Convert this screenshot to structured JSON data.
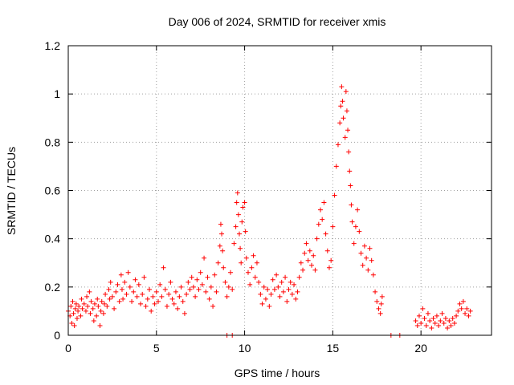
{
  "chart_data": {
    "type": "scatter",
    "title": "Day 006 of 2024, SRMTID for receiver xmis",
    "xlabel": "GPS time / hours",
    "ylabel": "SRMTID / TECUs",
    "xlim": [
      0,
      24
    ],
    "ylim": [
      0,
      1.2
    ],
    "x_ticks": [
      0,
      5,
      10,
      15,
      20
    ],
    "x_tick_labels": [
      "0",
      "5",
      "10",
      "15",
      "20"
    ],
    "y_ticks": [
      0,
      0.2,
      0.4,
      0.6,
      0.8,
      1.0,
      1.2
    ],
    "y_tick_labels": [
      "0",
      "0.2",
      "0.4",
      "0.6",
      "0.8",
      "1",
      "1.2"
    ],
    "grid": true,
    "marker": "plus",
    "marker_color": "#ff0000",
    "series": [
      {
        "name": "SRMTID",
        "points": [
          [
            0.0,
            0.1
          ],
          [
            0.1,
            0.08
          ],
          [
            0.15,
            0.12
          ],
          [
            0.2,
            0.05
          ],
          [
            0.25,
            0.14
          ],
          [
            0.3,
            0.09
          ],
          [
            0.35,
            0.04
          ],
          [
            0.4,
            0.11
          ],
          [
            0.45,
            0.13
          ],
          [
            0.5,
            0.07
          ],
          [
            0.55,
            0.1
          ],
          [
            0.6,
            0.12
          ],
          [
            0.7,
            0.08
          ],
          [
            0.75,
            0.15
          ],
          [
            0.8,
            0.11
          ],
          [
            0.9,
            0.13
          ],
          [
            1.0,
            0.1
          ],
          [
            1.05,
            0.16
          ],
          [
            1.1,
            0.12
          ],
          [
            1.2,
            0.18
          ],
          [
            1.25,
            0.09
          ],
          [
            1.3,
            0.14
          ],
          [
            1.4,
            0.11
          ],
          [
            1.45,
            0.06
          ],
          [
            1.5,
            0.13
          ],
          [
            1.6,
            0.08
          ],
          [
            1.65,
            0.15
          ],
          [
            1.7,
            0.12
          ],
          [
            1.8,
            0.04
          ],
          [
            1.85,
            0.1
          ],
          [
            1.9,
            0.14
          ],
          [
            2.0,
            0.09
          ],
          [
            2.05,
            0.13
          ],
          [
            2.1,
            0.17
          ],
          [
            2.2,
            0.12
          ],
          [
            2.3,
            0.19
          ],
          [
            2.35,
            0.15
          ],
          [
            2.4,
            0.22
          ],
          [
            2.5,
            0.16
          ],
          [
            2.6,
            0.11
          ],
          [
            2.7,
            0.18
          ],
          [
            2.8,
            0.21
          ],
          [
            2.9,
            0.14
          ],
          [
            3.0,
            0.25
          ],
          [
            3.05,
            0.19
          ],
          [
            3.1,
            0.15
          ],
          [
            3.2,
            0.22
          ],
          [
            3.3,
            0.17
          ],
          [
            3.4,
            0.26
          ],
          [
            3.5,
            0.2
          ],
          [
            3.6,
            0.14
          ],
          [
            3.7,
            0.18
          ],
          [
            3.8,
            0.23
          ],
          [
            3.9,
            0.16
          ],
          [
            4.0,
            0.21
          ],
          [
            4.1,
            0.13
          ],
          [
            4.2,
            0.17
          ],
          [
            4.3,
            0.24
          ],
          [
            4.4,
            0.12
          ],
          [
            4.5,
            0.15
          ],
          [
            4.6,
            0.19
          ],
          [
            4.7,
            0.1
          ],
          [
            4.8,
            0.16
          ],
          [
            4.9,
            0.13
          ],
          [
            5.0,
            0.18
          ],
          [
            5.1,
            0.14
          ],
          [
            5.2,
            0.21
          ],
          [
            5.3,
            0.16
          ],
          [
            5.4,
            0.28
          ],
          [
            5.5,
            0.19
          ],
          [
            5.6,
            0.12
          ],
          [
            5.7,
            0.17
          ],
          [
            5.8,
            0.22
          ],
          [
            5.9,
            0.15
          ],
          [
            6.0,
            0.13
          ],
          [
            6.1,
            0.18
          ],
          [
            6.2,
            0.11
          ],
          [
            6.3,
            0.16
          ],
          [
            6.4,
            0.2
          ],
          [
            6.5,
            0.14
          ],
          [
            6.6,
            0.09
          ],
          [
            6.7,
            0.17
          ],
          [
            6.8,
            0.22
          ],
          [
            6.9,
            0.19
          ],
          [
            7.0,
            0.24
          ],
          [
            7.1,
            0.2
          ],
          [
            7.2,
            0.16
          ],
          [
            7.3,
            0.23
          ],
          [
            7.4,
            0.19
          ],
          [
            7.5,
            0.26
          ],
          [
            7.6,
            0.21
          ],
          [
            7.7,
            0.32
          ],
          [
            7.8,
            0.18
          ],
          [
            7.9,
            0.24
          ],
          [
            8.0,
            0.15
          ],
          [
            8.1,
            0.2
          ],
          [
            8.2,
            0.12
          ],
          [
            8.3,
            0.25
          ],
          [
            8.4,
            0.18
          ],
          [
            8.5,
            0.3
          ],
          [
            8.6,
            0.37
          ],
          [
            8.65,
            0.46
          ],
          [
            8.7,
            0.42
          ],
          [
            8.75,
            0.35
          ],
          [
            8.8,
            0.28
          ],
          [
            8.9,
            0.22
          ],
          [
            9.0,
            0.16
          ],
          [
            9.1,
            0.2
          ],
          [
            9.2,
            0.26
          ],
          [
            9.3,
            0.19
          ],
          [
            9.4,
            0.38
          ],
          [
            9.5,
            0.45
          ],
          [
            9.55,
            0.55
          ],
          [
            9.6,
            0.59
          ],
          [
            9.65,
            0.5
          ],
          [
            9.7,
            0.42
          ],
          [
            9.75,
            0.36
          ],
          [
            9.8,
            0.3
          ],
          [
            9.85,
            0.47
          ],
          [
            9.9,
            0.53
          ],
          [
            10.0,
            0.55
          ],
          [
            10.05,
            0.43
          ],
          [
            10.1,
            0.32
          ],
          [
            10.2,
            0.26
          ],
          [
            10.3,
            0.21
          ],
          [
            10.4,
            0.28
          ],
          [
            10.5,
            0.33
          ],
          [
            10.6,
            0.24
          ],
          [
            10.7,
            0.3
          ],
          [
            10.8,
            0.22
          ],
          [
            10.9,
            0.17
          ],
          [
            11.0,
            0.13
          ],
          [
            11.1,
            0.2
          ],
          [
            11.2,
            0.15
          ],
          [
            11.3,
            0.19
          ],
          [
            11.4,
            0.12
          ],
          [
            11.5,
            0.17
          ],
          [
            11.6,
            0.23
          ],
          [
            11.7,
            0.19
          ],
          [
            11.8,
            0.25
          ],
          [
            11.9,
            0.2
          ],
          [
            12.0,
            0.16
          ],
          [
            12.1,
            0.22
          ],
          [
            12.2,
            0.18
          ],
          [
            12.3,
            0.24
          ],
          [
            12.4,
            0.14
          ],
          [
            12.5,
            0.19
          ],
          [
            12.6,
            0.22
          ],
          [
            12.7,
            0.17
          ],
          [
            12.8,
            0.21
          ],
          [
            12.9,
            0.15
          ],
          [
            13.0,
            0.18
          ],
          [
            13.1,
            0.24
          ],
          [
            13.2,
            0.3
          ],
          [
            13.3,
            0.27
          ],
          [
            13.4,
            0.34
          ],
          [
            13.5,
            0.38
          ],
          [
            13.6,
            0.31
          ],
          [
            13.7,
            0.35
          ],
          [
            13.8,
            0.29
          ],
          [
            13.9,
            0.33
          ],
          [
            14.0,
            0.27
          ],
          [
            14.1,
            0.4
          ],
          [
            14.2,
            0.46
          ],
          [
            14.3,
            0.52
          ],
          [
            14.4,
            0.48
          ],
          [
            14.5,
            0.55
          ],
          [
            14.6,
            0.42
          ],
          [
            14.7,
            0.35
          ],
          [
            14.8,
            0.28
          ],
          [
            14.9,
            0.31
          ],
          [
            15.0,
            0.45
          ],
          [
            15.1,
            0.58
          ],
          [
            15.2,
            0.7
          ],
          [
            15.3,
            0.79
          ],
          [
            15.4,
            0.88
          ],
          [
            15.45,
            0.95
          ],
          [
            15.5,
            1.03
          ],
          [
            15.55,
            0.97
          ],
          [
            15.6,
            0.9
          ],
          [
            15.7,
            0.82
          ],
          [
            15.75,
            1.01
          ],
          [
            15.8,
            0.93
          ],
          [
            15.85,
            0.85
          ],
          [
            15.9,
            0.76
          ],
          [
            15.95,
            0.68
          ],
          [
            16.0,
            0.62
          ],
          [
            16.05,
            0.54
          ],
          [
            16.1,
            0.47
          ],
          [
            16.2,
            0.38
          ],
          [
            16.3,
            0.45
          ],
          [
            16.4,
            0.52
          ],
          [
            16.5,
            0.43
          ],
          [
            16.6,
            0.34
          ],
          [
            16.7,
            0.29
          ],
          [
            16.8,
            0.37
          ],
          [
            16.9,
            0.32
          ],
          [
            17.0,
            0.27
          ],
          [
            17.1,
            0.36
          ],
          [
            17.2,
            0.31
          ],
          [
            17.3,
            0.25
          ],
          [
            17.4,
            0.18
          ],
          [
            17.5,
            0.14
          ],
          [
            17.6,
            0.11
          ],
          [
            17.7,
            0.09
          ],
          [
            17.75,
            0.13
          ],
          [
            17.8,
            0.16
          ],
          [
            19.7,
            0.06
          ],
          [
            19.8,
            0.04
          ],
          [
            19.9,
            0.08
          ],
          [
            20.0,
            0.05
          ],
          [
            20.1,
            0.11
          ],
          [
            20.2,
            0.07
          ],
          [
            20.3,
            0.04
          ],
          [
            20.4,
            0.09
          ],
          [
            20.5,
            0.06
          ],
          [
            20.6,
            0.03
          ],
          [
            20.7,
            0.07
          ],
          [
            20.8,
            0.05
          ],
          [
            20.9,
            0.08
          ],
          [
            21.0,
            0.04
          ],
          [
            21.1,
            0.06
          ],
          [
            21.2,
            0.09
          ],
          [
            21.3,
            0.05
          ],
          [
            21.4,
            0.07
          ],
          [
            21.5,
            0.03
          ],
          [
            21.6,
            0.06
          ],
          [
            21.7,
            0.04
          ],
          [
            21.8,
            0.07
          ],
          [
            21.9,
            0.05
          ],
          [
            22.0,
            0.08
          ],
          [
            22.1,
            0.1
          ],
          [
            22.2,
            0.13
          ],
          [
            22.3,
            0.11
          ],
          [
            22.4,
            0.14
          ],
          [
            22.5,
            0.09
          ],
          [
            22.6,
            0.11
          ],
          [
            22.7,
            0.08
          ],
          [
            22.8,
            0.1
          ],
          [
            9.0,
            0.0
          ],
          [
            9.3,
            0.0
          ],
          [
            18.3,
            0.0
          ],
          [
            18.8,
            0.0
          ]
        ]
      }
    ]
  }
}
